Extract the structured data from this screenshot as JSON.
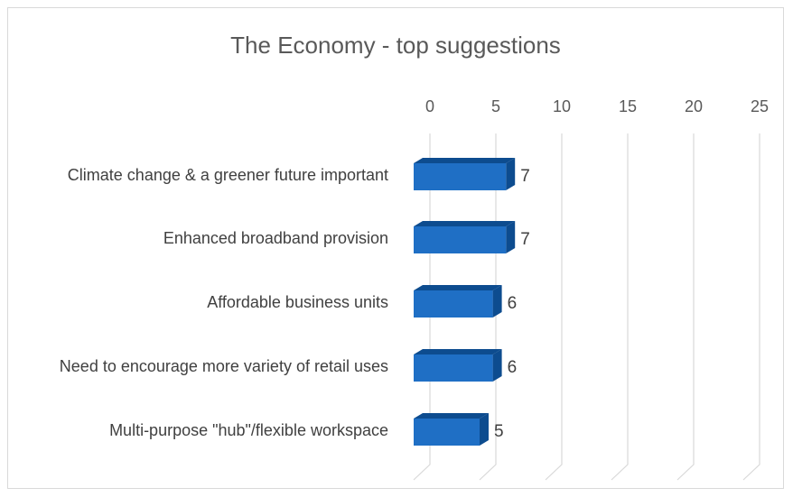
{
  "chart_data": {
    "type": "bar",
    "orientation": "horizontal",
    "style": "3d-clustered",
    "title": "The Economy - top suggestions",
    "categories": [
      "Climate change & a greener future important",
      "Enhanced broadband provision",
      "Affordable business units",
      "Need to encourage more variety of retail uses",
      "Multi-purpose \"hub\"/flexible workspace"
    ],
    "values": [
      7,
      7,
      6,
      6,
      5
    ],
    "xlim": [
      0,
      25
    ],
    "ticks": [
      0,
      5,
      10,
      15,
      20,
      25
    ],
    "grid": true,
    "legend": "none",
    "data_labels": true,
    "colors": {
      "bar_front": "#1f6fc5",
      "bar_top": "#2f80d6",
      "bar_side": "#0d4c8f",
      "gridline": "#d9d9d9",
      "text": "#404040"
    }
  }
}
